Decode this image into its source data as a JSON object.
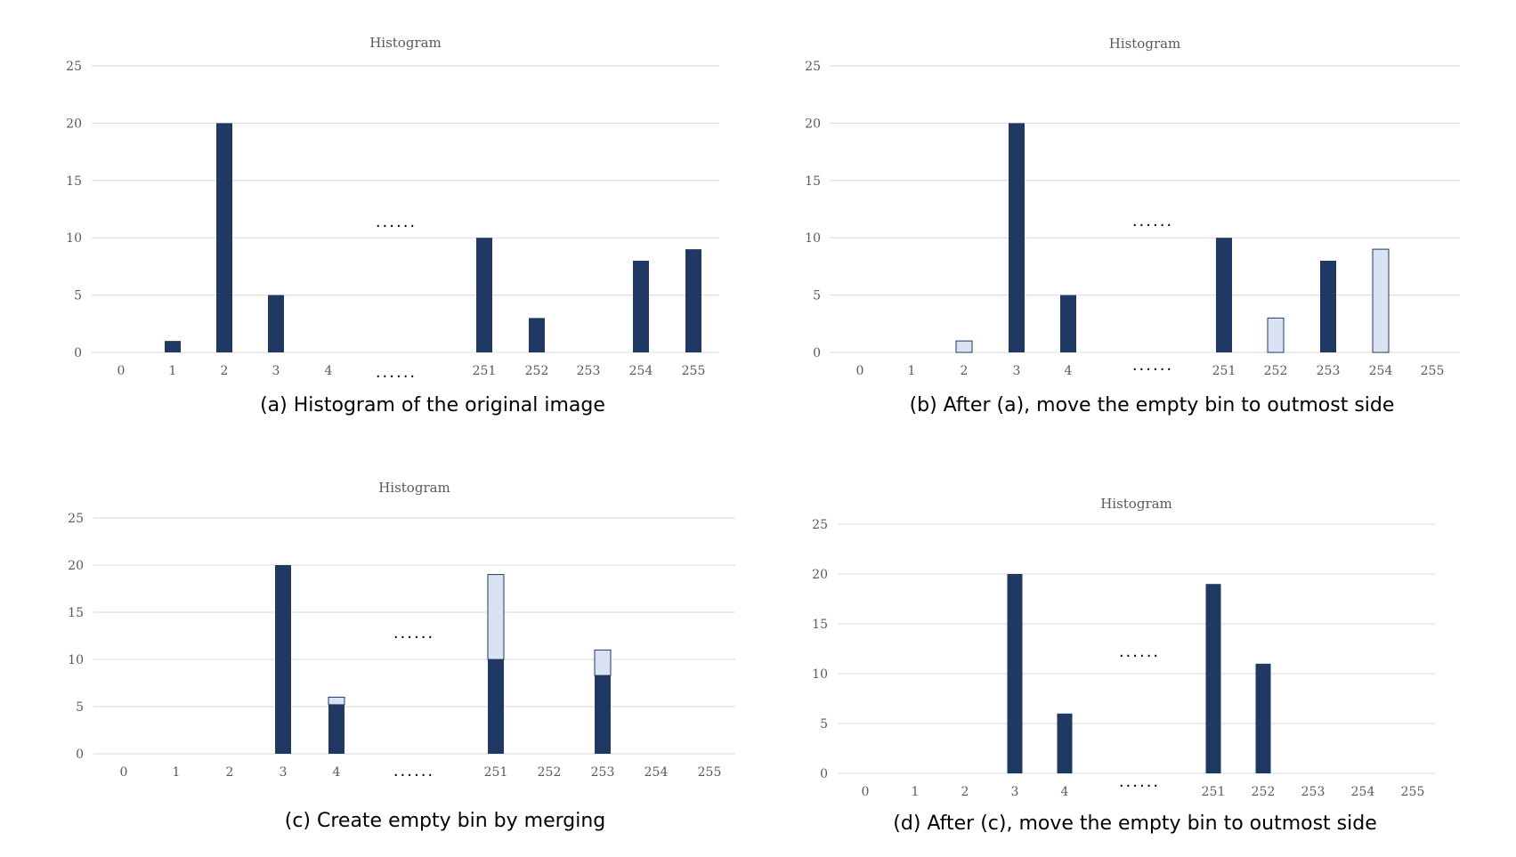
{
  "colors": {
    "dark_bar": "#1f3864",
    "light_bar": "#dae3f3",
    "light_bar_border": "#1f3864",
    "grid": "#d9d9d9"
  },
  "gap_marker": "......",
  "chart_data": [
    {
      "id": "a",
      "type": "bar",
      "title": "Histogram",
      "caption": "(a) Histogram of the original image",
      "categories": [
        "0",
        "1",
        "2",
        "3",
        "4",
        "251",
        "252",
        "253",
        "254",
        "255"
      ],
      "ylim": [
        0,
        25
      ],
      "yticks": [
        0,
        5,
        10,
        15,
        20,
        25
      ],
      "grid": true,
      "series": [
        {
          "values": [
            0,
            1,
            20,
            5,
            0,
            10,
            3,
            0,
            8,
            9
          ],
          "style": "dark"
        }
      ]
    },
    {
      "id": "b",
      "type": "bar",
      "title": "Histogram",
      "caption": "(b) After (a), move the empty bin to outmost side",
      "categories": [
        "0",
        "1",
        "2",
        "3",
        "4",
        "251",
        "252",
        "253",
        "254",
        "255"
      ],
      "ylim": [
        0,
        25
      ],
      "yticks": [
        0,
        5,
        10,
        15,
        20,
        25
      ],
      "grid": true,
      "series": [
        {
          "values": [
            0,
            0,
            0,
            20,
            5,
            10,
            0,
            8,
            0,
            0
          ],
          "style": "dark"
        },
        {
          "values": [
            0,
            0,
            1,
            0,
            0,
            0,
            3,
            0,
            9,
            0
          ],
          "style": "light"
        }
      ]
    },
    {
      "id": "c",
      "type": "bar",
      "title": "Histogram",
      "caption": "(c) Create empty bin by merging",
      "categories": [
        "0",
        "1",
        "2",
        "3",
        "4",
        "251",
        "252",
        "253",
        "254",
        "255"
      ],
      "ylim": [
        0,
        25
      ],
      "yticks": [
        0,
        5,
        10,
        15,
        20,
        25
      ],
      "grid": true,
      "stacked": true,
      "series": [
        {
          "values": [
            0,
            0,
            0,
            20,
            5.2,
            10,
            0,
            8.3,
            0,
            0
          ],
          "style": "dark"
        },
        {
          "values": [
            0,
            0,
            0,
            0,
            0.8,
            9,
            0,
            2.7,
            0,
            0
          ],
          "style": "light"
        }
      ]
    },
    {
      "id": "d",
      "type": "bar",
      "title": "Histogram",
      "caption": "(d) After (c), move the empty bin to outmost side",
      "categories": [
        "0",
        "1",
        "2",
        "3",
        "4",
        "251",
        "252",
        "253",
        "254",
        "255"
      ],
      "ylim": [
        0,
        25
      ],
      "yticks": [
        0,
        5,
        10,
        15,
        20,
        25
      ],
      "grid": true,
      "series": [
        {
          "values": [
            0,
            0,
            0,
            20,
            6,
            19,
            11,
            0,
            0,
            0
          ],
          "style": "dark"
        }
      ]
    }
  ]
}
